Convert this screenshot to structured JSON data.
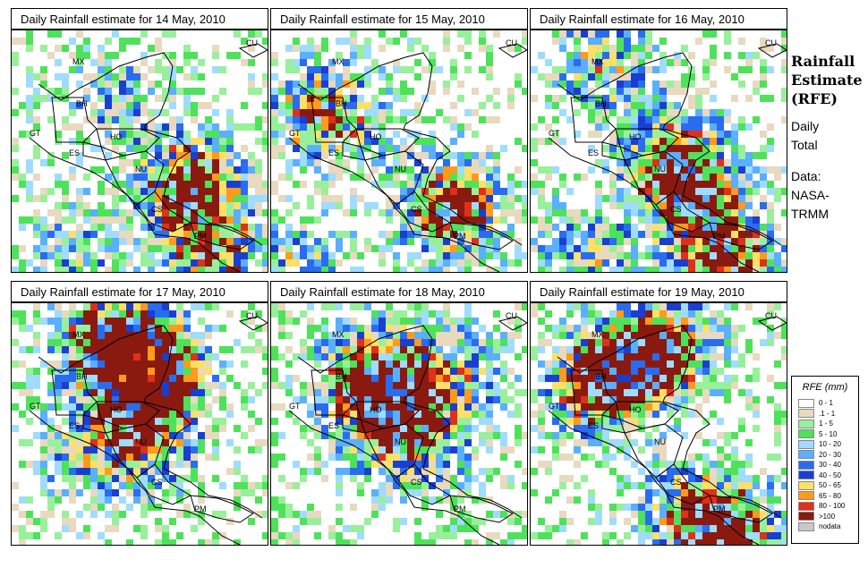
{
  "panels": [
    {
      "title": "Daily Rainfall estimate for  14 May, 2010",
      "seed": 14,
      "peaks": [
        [
          210,
          205,
          1.0
        ],
        [
          235,
          285,
          0.7
        ],
        [
          80,
          280,
          0.4
        ],
        [
          130,
          110,
          0.35
        ]
      ]
    },
    {
      "title": "Daily Rainfall estimate for  15 May, 2010",
      "seed": 15,
      "peaks": [
        [
          500,
          230,
          1.0
        ],
        [
          330,
          300,
          0.5
        ],
        [
          340,
          120,
          0.45
        ],
        [
          380,
          130,
          0.4
        ]
      ]
    },
    {
      "title": "Daily Rainfall estimate for  16 May, 2010",
      "seed": 16,
      "peaks": [
        [
          745,
          170,
          0.7
        ],
        [
          770,
          215,
          0.8
        ],
        [
          810,
          290,
          0.85
        ],
        [
          670,
          70,
          0.5
        ],
        [
          650,
          280,
          0.45
        ]
      ]
    },
    {
      "title": "Daily Rainfall estimate for  17 May, 2010",
      "seed": 17,
      "peaks": [
        [
          145,
          400,
          1.0
        ],
        [
          165,
          420,
          0.9
        ],
        [
          120,
          380,
          0.75
        ],
        [
          160,
          490,
          0.6
        ],
        [
          90,
          500,
          0.35
        ]
      ]
    },
    {
      "title": "Daily Rainfall estimate for  18 May, 2010",
      "seed": 18,
      "peaks": [
        [
          440,
          410,
          0.55
        ],
        [
          460,
          490,
          0.6
        ],
        [
          400,
          420,
          0.5
        ],
        [
          420,
          460,
          0.45
        ],
        [
          510,
          420,
          0.4
        ]
      ]
    },
    {
      "title": "Daily Rainfall estimate for  19 May, 2010",
      "seed": 19,
      "peaks": [
        [
          740,
          385,
          0.9
        ],
        [
          690,
          410,
          0.75
        ],
        [
          820,
          600,
          0.85
        ],
        [
          770,
          570,
          0.7
        ],
        [
          660,
          430,
          0.6
        ]
      ]
    }
  ],
  "labels": {
    "MX": "MX",
    "BH": "BH",
    "GT": "GT",
    "HO": "HO",
    "ES": "ES",
    "NU": "NU",
    "CS": "CS",
    "PM": "PM",
    "CU": "CU"
  },
  "side": {
    "title_line1": "Rainfall",
    "title_line2": "Estimate",
    "title_line3": "(RFE)",
    "daily": "Daily",
    "total": "Total",
    "data_line1": "Data:",
    "data_line2": "NASA-",
    "data_line3": "TRMM"
  },
  "legend": {
    "title": "RFE (mm)",
    "classes": [
      {
        "label": "0 - 1",
        "color": "#ffffff"
      },
      {
        "label": ".1 - 1",
        "color": "#e8d9bf"
      },
      {
        "label": "1 - 5",
        "color": "#98f09a"
      },
      {
        "label": "5 - 10",
        "color": "#4ee25a"
      },
      {
        "label": "10 - 20",
        "color": "#9fdcff"
      },
      {
        "label": "20 - 30",
        "color": "#5aafff"
      },
      {
        "label": "30 - 40",
        "color": "#2a6cf0"
      },
      {
        "label": "40 - 50",
        "color": "#1a3fd0"
      },
      {
        "label": "50 - 65",
        "color": "#ffe066"
      },
      {
        "label": "65 - 80",
        "color": "#ff9a1a"
      },
      {
        "label": "80 - 100",
        "color": "#e0301a"
      },
      {
        "label": ">100",
        "color": "#8a1a10"
      },
      {
        "label": "nodata",
        "color": "#c8c8c8"
      }
    ]
  }
}
